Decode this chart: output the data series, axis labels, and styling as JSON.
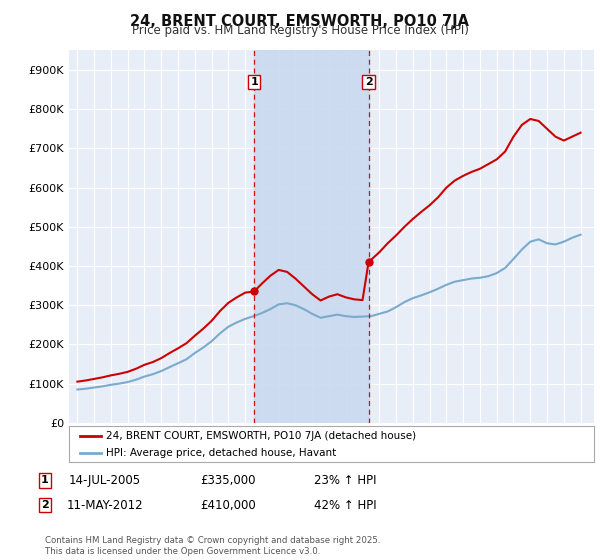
{
  "title": "24, BRENT COURT, EMSWORTH, PO10 7JA",
  "subtitle": "Price paid vs. HM Land Registry's House Price Index (HPI)",
  "ylim": [
    0,
    950000
  ],
  "yticks": [
    0,
    100000,
    200000,
    300000,
    400000,
    500000,
    600000,
    700000,
    800000,
    900000
  ],
  "ytick_labels": [
    "£0",
    "£100K",
    "£200K",
    "£300K",
    "£400K",
    "£500K",
    "£600K",
    "£700K",
    "£800K",
    "£900K"
  ],
  "background_color": "#ffffff",
  "plot_bg_color": "#e8eef8",
  "grid_color": "#ffffff",
  "sale1_date_num": 2005.54,
  "sale1_price": 335000,
  "sale1_date_str": "14-JUL-2005",
  "sale1_pct": "23%",
  "sale2_date_num": 2012.36,
  "sale2_price": 410000,
  "sale2_date_str": "11-MAY-2012",
  "sale2_pct": "42%",
  "band_color": "#c8d8ee",
  "red_line_color": "#cc0000",
  "blue_line_color": "#7aaacc",
  "legend_label_red": "24, BRENT COURT, EMSWORTH, PO10 7JA (detached house)",
  "legend_label_blue": "HPI: Average price, detached house, Havant",
  "footnote": "Contains HM Land Registry data © Crown copyright and database right 2025.\nThis data is licensed under the Open Government Licence v3.0.",
  "xlim_start": 1994.5,
  "xlim_end": 2025.8,
  "years_hpi": [
    1995,
    1995.5,
    1996,
    1996.5,
    1997,
    1997.5,
    1998,
    1998.5,
    1999,
    1999.5,
    2000,
    2000.5,
    2001,
    2001.5,
    2002,
    2002.5,
    2003,
    2003.5,
    2004,
    2004.5,
    2005,
    2005.5,
    2006,
    2006.5,
    2007,
    2007.5,
    2008,
    2008.5,
    2009,
    2009.5,
    2010,
    2010.5,
    2011,
    2011.5,
    2012,
    2012.5,
    2013,
    2013.5,
    2014,
    2014.5,
    2015,
    2015.5,
    2016,
    2016.5,
    2017,
    2017.5,
    2018,
    2018.5,
    2019,
    2019.5,
    2020,
    2020.5,
    2021,
    2021.5,
    2022,
    2022.5,
    2023,
    2023.5,
    2024,
    2024.5,
    2025
  ],
  "hpi_values": [
    85000,
    87000,
    90000,
    93000,
    97000,
    100000,
    104000,
    110000,
    118000,
    124000,
    132000,
    142000,
    152000,
    162000,
    178000,
    192000,
    208000,
    228000,
    245000,
    256000,
    265000,
    272000,
    280000,
    290000,
    302000,
    305000,
    300000,
    290000,
    278000,
    268000,
    272000,
    276000,
    272000,
    270000,
    271000,
    272000,
    278000,
    284000,
    295000,
    308000,
    318000,
    325000,
    333000,
    342000,
    352000,
    360000,
    364000,
    368000,
    370000,
    374000,
    382000,
    395000,
    418000,
    442000,
    462000,
    468000,
    458000,
    455000,
    462000,
    472000,
    480000
  ],
  "years_red": [
    1995,
    1995.5,
    1996,
    1996.5,
    1997,
    1997.5,
    1998,
    1998.5,
    1999,
    1999.5,
    2000,
    2000.5,
    2001,
    2001.5,
    2002,
    2002.5,
    2003,
    2003.5,
    2004,
    2004.5,
    2005,
    2005.54,
    2006,
    2006.5,
    2007,
    2007.5,
    2008,
    2008.5,
    2009,
    2009.5,
    2010,
    2010.5,
    2011,
    2011.5,
    2012,
    2012.36,
    2013,
    2013.5,
    2014,
    2014.5,
    2015,
    2015.5,
    2016,
    2016.5,
    2017,
    2017.5,
    2018,
    2018.5,
    2019,
    2019.5,
    2020,
    2020.5,
    2021,
    2021.5,
    2022,
    2022.5,
    2023,
    2023.5,
    2024,
    2024.5,
    2025
  ],
  "red_values": [
    105000,
    108000,
    112000,
    116000,
    121000,
    125000,
    130000,
    138000,
    148000,
    155000,
    165000,
    178000,
    190000,
    203000,
    222000,
    240000,
    260000,
    285000,
    306000,
    320000,
    332000,
    335000,
    355000,
    375000,
    390000,
    385000,
    368000,
    348000,
    328000,
    312000,
    322000,
    328000,
    320000,
    315000,
    313000,
    410000,
    435000,
    458000,
    478000,
    500000,
    520000,
    538000,
    555000,
    575000,
    600000,
    618000,
    630000,
    640000,
    648000,
    660000,
    672000,
    692000,
    730000,
    760000,
    775000,
    770000,
    750000,
    730000,
    720000,
    730000,
    740000
  ]
}
